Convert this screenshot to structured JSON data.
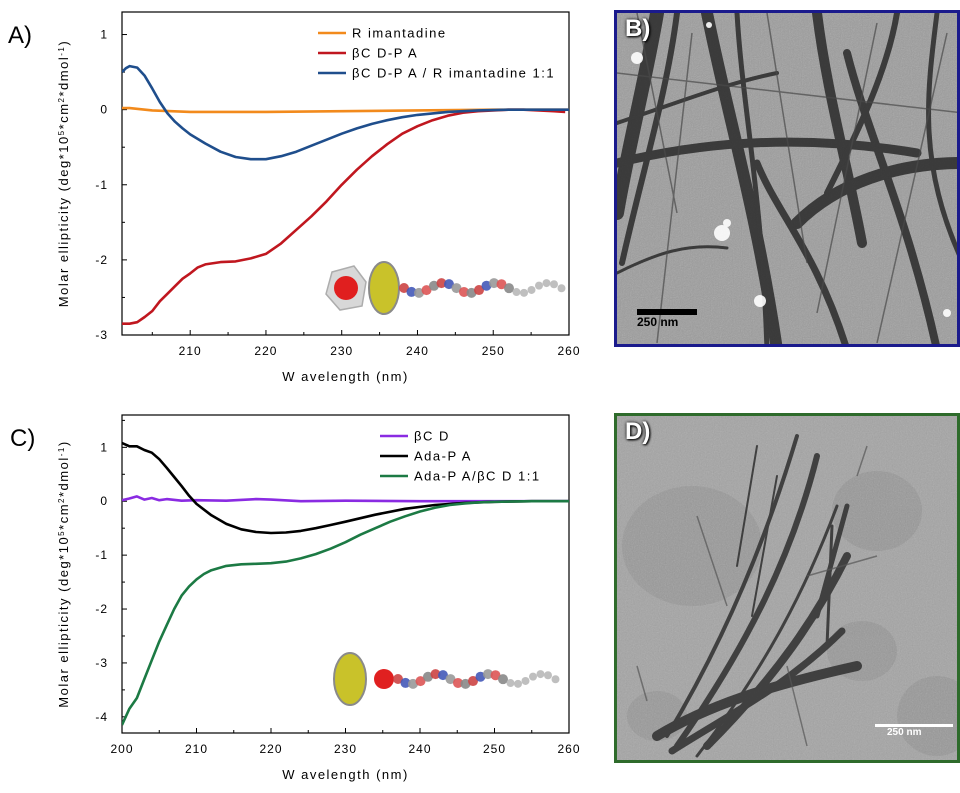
{
  "colors": {
    "orange": "#f28a1c",
    "red": "#c0171f",
    "blue": "#1f4e8c",
    "purple": "#8a2be2",
    "black": "#000000",
    "green": "#1c7a44",
    "frame_blue": "#1a1a8c",
    "frame_green": "#2e6b2b"
  },
  "panels": {
    "A": {
      "label": "A)"
    },
    "B": {
      "label": "B)",
      "scale_text": "250 nm",
      "frame_color": "#1a1a8c"
    },
    "C": {
      "label": "C)"
    },
    "D": {
      "label": "D)",
      "scale_text": "250 nm",
      "frame_color": "#2e6b2b"
    }
  },
  "chart_data": [
    {
      "type": "line",
      "xlabel": "W avelength (nm)",
      "ylabel": "Molar ellipticity (deg*10^5*cm^2*dmol^-1)",
      "xlim": [
        201,
        260
      ],
      "ylim": [
        -3,
        1.3
      ],
      "xticks": [
        210,
        220,
        230,
        240,
        250,
        260
      ],
      "yticks": [
        -3,
        -2,
        -1,
        0,
        1
      ],
      "legend_position": "top-right",
      "grid": false,
      "series": [
        {
          "name": "R imantadine",
          "color": "#f28a1c",
          "x": [
            201,
            202,
            205,
            210,
            220,
            230,
            240,
            250,
            260
          ],
          "y": [
            0.02,
            0.02,
            -0.01,
            -0.03,
            -0.03,
            -0.02,
            -0.01,
            0.0,
            0.0
          ]
        },
        {
          "name": "βC D-P A",
          "color": "#c0171f",
          "x": [
            201,
            202,
            203,
            204,
            205,
            206,
            207,
            208,
            209,
            210,
            211,
            212,
            214,
            216,
            218,
            220,
            222,
            224,
            226,
            228,
            230,
            232,
            234,
            236,
            238,
            240,
            242,
            244,
            246,
            248,
            250,
            252,
            254,
            256,
            258,
            259.5
          ],
          "y": [
            -2.85,
            -2.85,
            -2.83,
            -2.76,
            -2.68,
            -2.55,
            -2.45,
            -2.35,
            -2.25,
            -2.18,
            -2.1,
            -2.06,
            -2.03,
            -2.02,
            -1.98,
            -1.92,
            -1.78,
            -1.6,
            -1.42,
            -1.22,
            -1.0,
            -0.8,
            -0.62,
            -0.46,
            -0.32,
            -0.22,
            -0.14,
            -0.08,
            -0.04,
            -0.02,
            -0.01,
            0.0,
            0.0,
            -0.01,
            -0.02,
            -0.03
          ]
        },
        {
          "name": "βC D-P A / R imantadine 1:1",
          "color": "#1f4e8c",
          "x": [
            201,
            201.5,
            202,
            203,
            204,
            205,
            206,
            207,
            208,
            209,
            210,
            212,
            214,
            216,
            218,
            220,
            222,
            224,
            226,
            228,
            230,
            232,
            234,
            236,
            238,
            240,
            244,
            248,
            252,
            256,
            260
          ],
          "y": [
            0.5,
            0.55,
            0.58,
            0.56,
            0.45,
            0.28,
            0.1,
            -0.05,
            -0.16,
            -0.25,
            -0.33,
            -0.45,
            -0.56,
            -0.63,
            -0.66,
            -0.66,
            -0.62,
            -0.56,
            -0.48,
            -0.4,
            -0.32,
            -0.25,
            -0.19,
            -0.14,
            -0.1,
            -0.07,
            -0.03,
            -0.01,
            0.0,
            0.0,
            0.0
          ]
        }
      ]
    },
    {
      "type": "line",
      "xlabel": "W avelength (nm)",
      "ylabel": "Molar ellipticity (deg*10^5*cm^2*dmol^-1)",
      "xlim": [
        200,
        260
      ],
      "ylim": [
        -4.3,
        1.6
      ],
      "xticks": [
        200,
        210,
        220,
        230,
        240,
        250,
        260
      ],
      "yticks": [
        -4,
        -3,
        -2,
        -1,
        0,
        1
      ],
      "legend_position": "top-right",
      "grid": false,
      "series": [
        {
          "name": "βC D",
          "color": "#8a2be2",
          "x": [
            200,
            201,
            202,
            203,
            204,
            205,
            206,
            208,
            210,
            214,
            218,
            220,
            224,
            230,
            240,
            250,
            260
          ],
          "y": [
            0.02,
            0.05,
            0.09,
            0.03,
            0.06,
            0.02,
            0.04,
            0.01,
            0.02,
            0.01,
            0.04,
            0.03,
            0.0,
            0.01,
            0.0,
            0.0,
            0.0
          ]
        },
        {
          "name": "Ada-P A",
          "color": "#000000",
          "x": [
            200,
            201,
            202,
            203,
            204,
            205,
            206,
            207,
            208,
            209,
            210,
            212,
            214,
            216,
            218,
            220,
            222,
            224,
            226,
            228,
            230,
            234,
            238,
            242,
            246,
            250,
            255,
            260
          ],
          "y": [
            1.08,
            1.02,
            1.02,
            0.95,
            0.9,
            0.78,
            0.62,
            0.45,
            0.28,
            0.1,
            -0.05,
            -0.26,
            -0.42,
            -0.52,
            -0.57,
            -0.59,
            -0.58,
            -0.55,
            -0.5,
            -0.44,
            -0.38,
            -0.25,
            -0.14,
            -0.07,
            -0.03,
            -0.01,
            0.0,
            0.0
          ]
        },
        {
          "name": "Ada-P A/βC D 1:1",
          "color": "#1c7a44",
          "x": [
            200,
            201,
            202,
            203,
            204,
            205,
            206,
            207,
            208,
            209,
            210,
            211,
            212,
            214,
            216,
            218,
            220,
            222,
            224,
            226,
            228,
            230,
            232,
            234,
            236,
            238,
            240,
            242,
            244,
            246,
            248,
            250,
            255,
            260
          ],
          "y": [
            -4.15,
            -3.85,
            -3.65,
            -3.3,
            -2.95,
            -2.6,
            -2.3,
            -2.0,
            -1.75,
            -1.58,
            -1.45,
            -1.35,
            -1.28,
            -1.2,
            -1.17,
            -1.16,
            -1.15,
            -1.12,
            -1.06,
            -0.98,
            -0.88,
            -0.76,
            -0.62,
            -0.5,
            -0.38,
            -0.28,
            -0.19,
            -0.12,
            -0.07,
            -0.04,
            -0.02,
            -0.01,
            0.0,
            0.0
          ]
        }
      ]
    }
  ]
}
